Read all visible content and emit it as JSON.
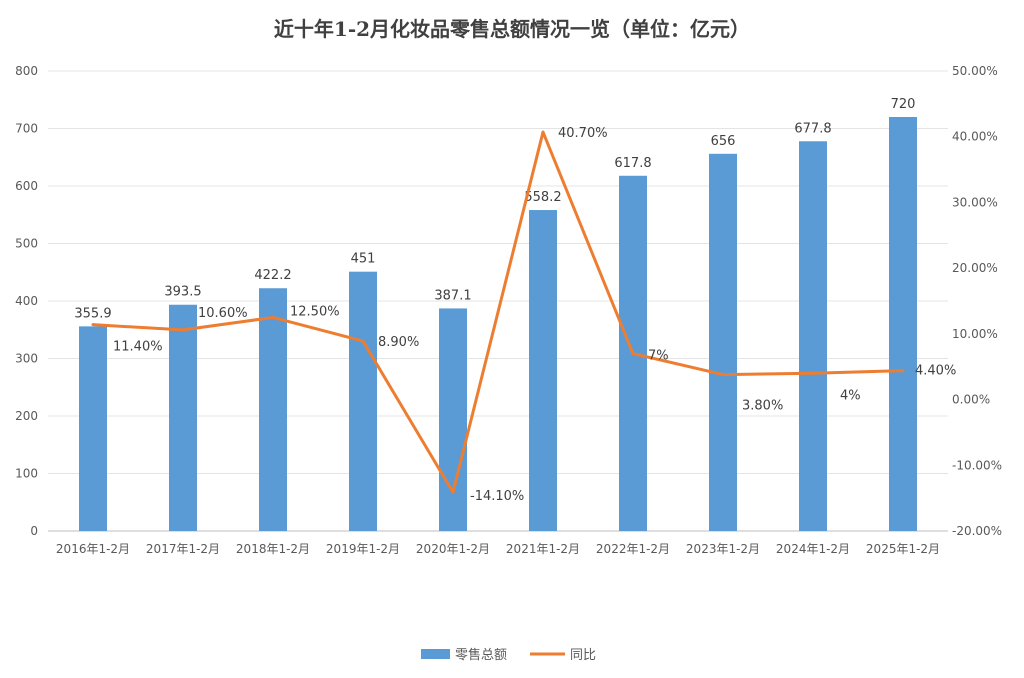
{
  "chart_data": {
    "type": "bar+line",
    "title": "近十年1-2月化妆品零售总额情况一览（单位：亿元）",
    "categories": [
      "2016年1-2月",
      "2017年1-2月",
      "2018年1-2月",
      "2019年1-2月",
      "2020年1-2月",
      "2021年1-2月",
      "2022年1-2月",
      "2023年1-2月",
      "2024年1-2月",
      "2025年1-2月"
    ],
    "series": [
      {
        "name": "零售总额",
        "type": "bar",
        "axis": "left",
        "color": "#5B9BD5",
        "values": [
          355.9,
          393.5,
          422.2,
          451,
          387.1,
          558.2,
          617.8,
          656,
          677.8,
          720
        ],
        "labels": [
          "355.9",
          "393.5",
          "422.2",
          "451",
          "387.1",
          "558.2",
          "617.8",
          "656",
          "677.8",
          "720"
        ]
      },
      {
        "name": "同比",
        "type": "line",
        "axis": "right",
        "color": "#ED7D31",
        "values": [
          11.4,
          10.6,
          12.5,
          8.9,
          -14.1,
          40.7,
          7,
          3.8,
          4,
          4.4
        ],
        "labels": [
          "11.40%",
          "10.60%",
          "12.50%",
          "8.90%",
          "-14.10%",
          "40.70%",
          "7%",
          "3.80%",
          "4%",
          "4.40%"
        ]
      }
    ],
    "left_axis": {
      "min": 0,
      "max": 800,
      "step": 100,
      "ticks": [
        "0",
        "100",
        "200",
        "300",
        "400",
        "500",
        "600",
        "700",
        "800"
      ]
    },
    "right_axis": {
      "min": -20,
      "max": 50,
      "step": 10,
      "ticks": [
        "-20.00%",
        "-10.00%",
        "0.00%",
        "10.00%",
        "20.00%",
        "30.00%",
        "40.00%",
        "50.00%"
      ]
    },
    "grid": true,
    "legend": {
      "position": "bottom",
      "entries": [
        "零售总额",
        "同比"
      ]
    }
  }
}
